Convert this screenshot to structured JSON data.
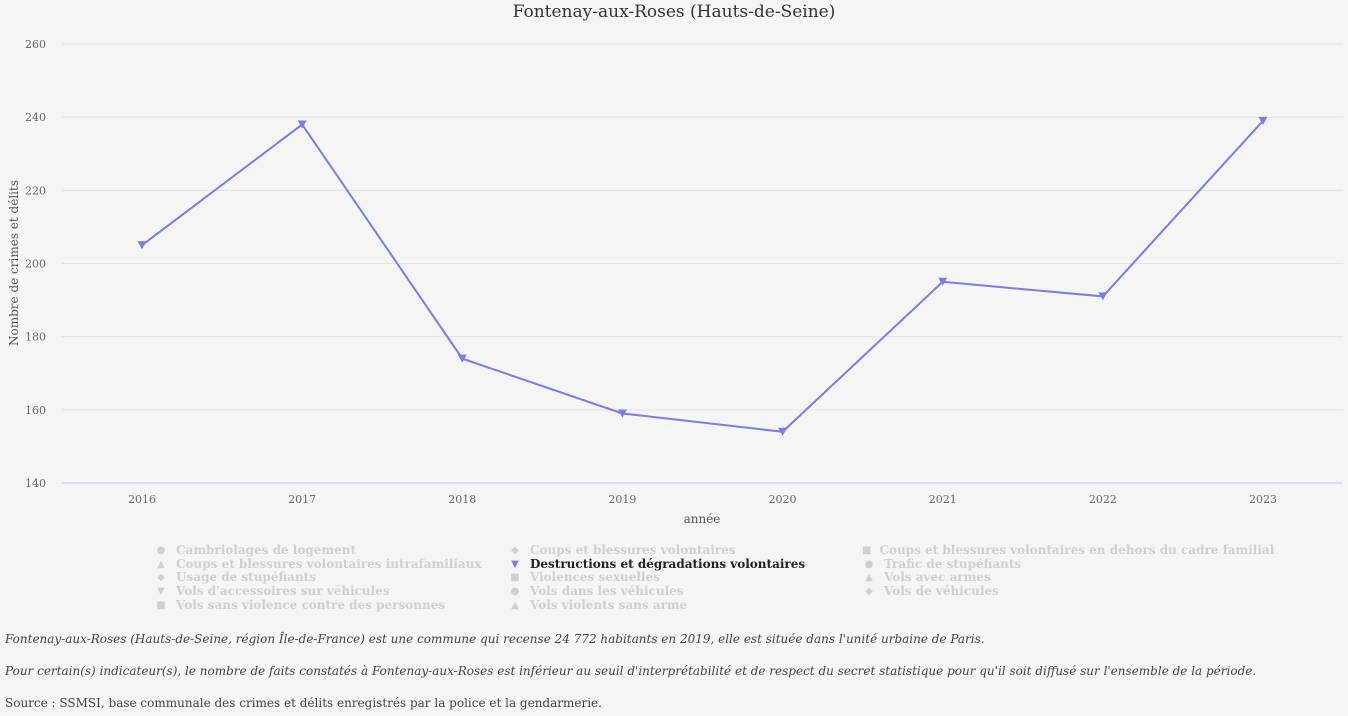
{
  "chart_data": {
    "type": "line",
    "title": "Fontenay-aux-Roses (Hauts-de-Seine)",
    "xlabel": "année",
    "ylabel": "Nombre de crimes et délits",
    "x": [
      "2016",
      "2017",
      "2018",
      "2019",
      "2020",
      "2021",
      "2022",
      "2023"
    ],
    "ylim": [
      140,
      260
    ],
    "yticks": [
      "140",
      "160",
      "180",
      "200",
      "220",
      "240",
      "260"
    ],
    "grid": true,
    "legend_position": "bottom",
    "series": [
      {
        "name": "Destructions et dégradations volontaires",
        "values": [
          205,
          238,
          174,
          159,
          154,
          195,
          191,
          239
        ],
        "color": "#7b7bea",
        "marker": "triangle-down"
      }
    ]
  },
  "legend": {
    "items": [
      {
        "label": "Cambriolages de logement",
        "symbol": "●",
        "active": false
      },
      {
        "label": "Coups et blessures volontaires",
        "symbol": "◆",
        "active": false
      },
      {
        "label": "Coups et blessures volontaires en dehors du cadre familial",
        "symbol": "■",
        "active": false
      },
      {
        "label": "Coups et blessures volontaires intrafamiliaux",
        "symbol": "▲",
        "active": false
      },
      {
        "label": "Destructions et dégradations volontaires",
        "symbol": "▼",
        "active": true
      },
      {
        "label": "Trafic de stupéfiants",
        "symbol": "●",
        "active": false
      },
      {
        "label": "Usage de stupéfiants",
        "symbol": "◆",
        "active": false
      },
      {
        "label": "Violences sexuelles",
        "symbol": "■",
        "active": false
      },
      {
        "label": "Vols avec armes",
        "symbol": "▲",
        "active": false
      },
      {
        "label": "Vols d'accessoires sur véhicules",
        "symbol": "▼",
        "active": false
      },
      {
        "label": "Vols dans les véhicules",
        "symbol": "●",
        "active": false
      },
      {
        "label": "Vols de véhicules",
        "symbol": "◆",
        "active": false
      },
      {
        "label": "Vols sans violence contre des personnes",
        "symbol": "■",
        "active": false
      },
      {
        "label": "Vols violents sans arme",
        "symbol": "▲",
        "active": false
      }
    ]
  },
  "notes": {
    "description": "Fontenay-aux-Roses (Hauts-de-Seine, région Île-de-France) est une commune qui recense 24 772 habitants en 2019, elle est située dans l'unité urbaine de Paris.",
    "threshold": "Pour certain(s) indicateur(s), le nombre de faits constatés à Fontenay-aux-Roses est inférieur au seuil d'interprétabilité et de respect du secret statistique pour qu'il soit diffusé sur l'ensemble de la période.",
    "source": "Source : SSMSI, base communale des crimes et délits enregistrés par la police et la gendarmerie."
  }
}
